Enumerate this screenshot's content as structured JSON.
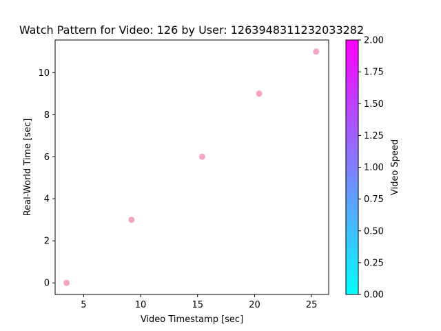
{
  "chart_data": {
    "type": "scatter",
    "title": "Watch Pattern for Video: 126 by User: 1263948311232033282",
    "xlabel": "Video Timestamp [sec]",
    "ylabel": "Real-World Time [sec]",
    "xlim": [
      2.5,
      26.5
    ],
    "ylim": [
      -0.55,
      11.55
    ],
    "xticks": [
      5,
      10,
      15,
      20,
      25
    ],
    "yticks": [
      0,
      2,
      4,
      6,
      8,
      10
    ],
    "grid": false,
    "point_color": "#f5a3c7",
    "points": [
      {
        "x": 3.5,
        "y": 0
      },
      {
        "x": 9.2,
        "y": 3
      },
      {
        "x": 15.4,
        "y": 6
      },
      {
        "x": 20.4,
        "y": 9
      },
      {
        "x": 25.4,
        "y": 11
      }
    ],
    "colorbar": {
      "label": "Video Speed",
      "min": 0.0,
      "max": 2.0,
      "ticks": [
        "0.00",
        "0.25",
        "0.50",
        "0.75",
        "1.00",
        "1.25",
        "1.50",
        "1.75",
        "2.00"
      ],
      "color_low": "#00ffff",
      "color_high": "#ff00ff"
    }
  }
}
